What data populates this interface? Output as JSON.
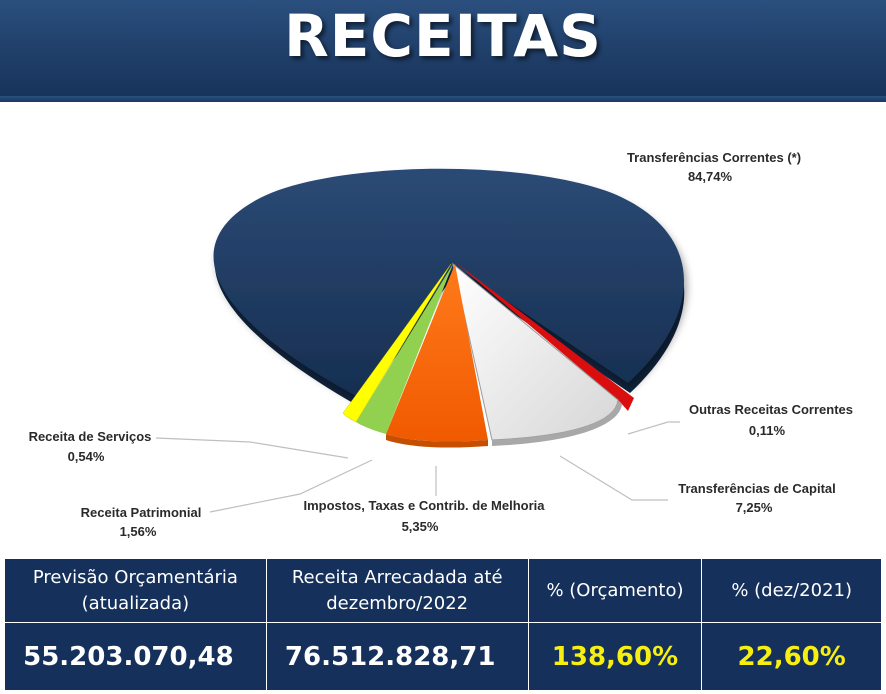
{
  "header": {
    "title": "RECEITAS"
  },
  "chart_data": {
    "type": "pie",
    "slices": [
      {
        "label": "Transferências Correntes (*)",
        "value": 84.74,
        "value_label": "84,74%",
        "color": "#1f3b63"
      },
      {
        "label": "Outras Receitas Correntes",
        "value": 0.11,
        "value_label": "0,11%",
        "color": "#d90f0f"
      },
      {
        "label": "Transferências de Capital",
        "value": 7.25,
        "value_label": "7,25%",
        "color": "#f2f2f2"
      },
      {
        "label": "Impostos, Taxas e Contrib. de Melhoria",
        "value": 5.35,
        "value_label": "5,35%",
        "color": "#ff6a00"
      },
      {
        "label": "Receita Patrimonial",
        "value": 1.56,
        "value_label": "1,56%",
        "color": "#92d050"
      },
      {
        "label": "Receita de Serviços",
        "value": 0.54,
        "value_label": "0,54%",
        "color": "#ffff00"
      }
    ]
  },
  "summary": {
    "headers": {
      "previsao_line1": "Previsão Orçamentária",
      "previsao_line2": "(atualizada)",
      "arrecadada_line1": "Receita Arrecadada até",
      "arrecadada_line2": "dezembro/2022",
      "orcamento": "% (Orçamento)",
      "dez2021": "% (dez/2021)"
    },
    "values": {
      "previsao": "55.203.070,48",
      "arrecadada": "76.512.828,71",
      "orcamento": "138,60%",
      "dez2021": "22,60%"
    }
  }
}
